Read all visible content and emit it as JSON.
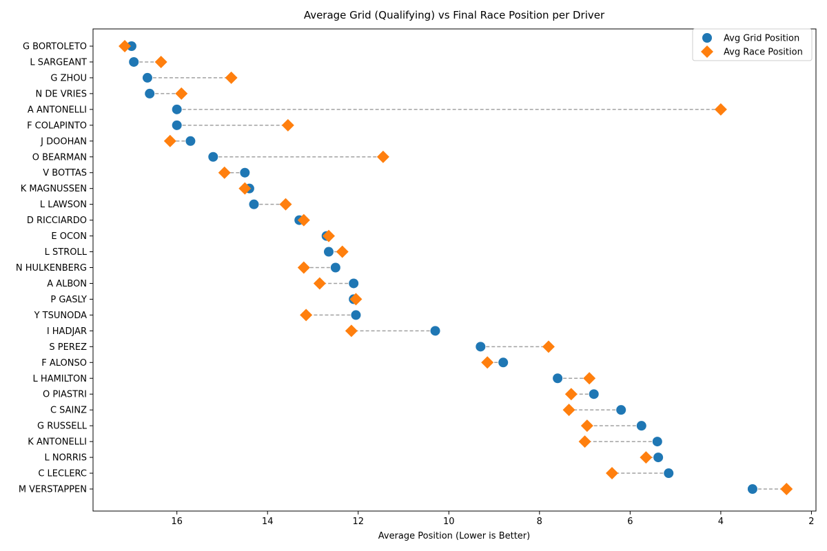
{
  "chart_data": {
    "type": "scatter",
    "title": "Average Grid (Qualifying) vs Final Race Position per Driver",
    "xlabel": "Average Position (Lower is Better)",
    "ylabel": "",
    "x_inverted": true,
    "xlim": [
      17.85,
      1.9
    ],
    "xticks": [
      16,
      14,
      12,
      10,
      8,
      6,
      4,
      2
    ],
    "grid": false,
    "legend_position": "top-right",
    "connector_style": "dashed-gray",
    "categories": [
      "G BORTOLETO",
      "L SARGEANT",
      "G ZHOU",
      "N DE VRIES",
      "A ANTONELLI",
      "F COLAPINTO",
      "J DOOHAN",
      "O BEARMAN",
      "V BOTTAS",
      "K MAGNUSSEN",
      "L LAWSON",
      "D RICCIARDO",
      "E OCON",
      "L STROLL",
      "N HULKENBERG",
      "A ALBON",
      "P GASLY",
      "Y TSUNODA",
      "I HADJAR",
      "S PEREZ",
      "F ALONSO",
      "L HAMILTON",
      "O PIASTRI",
      "C SAINZ",
      "G RUSSELL",
      "K ANTONELLI",
      "L NORRIS",
      "C LECLERC",
      "M VERSTAPPEN"
    ],
    "series": [
      {
        "name": "Avg Grid Position",
        "marker": "circle",
        "color": "#1f77b4",
        "values": [
          17.0,
          16.95,
          16.65,
          16.6,
          16.0,
          16.0,
          15.7,
          15.2,
          14.5,
          14.4,
          14.3,
          13.3,
          12.7,
          12.65,
          12.5,
          12.1,
          12.1,
          12.05,
          10.3,
          9.3,
          8.8,
          7.6,
          6.8,
          6.2,
          5.75,
          5.4,
          5.38,
          5.15,
          3.3
        ]
      },
      {
        "name": "Avg Race Position",
        "marker": "diamond",
        "color": "#ff7f0e",
        "values": [
          17.15,
          16.35,
          14.8,
          15.9,
          4.0,
          13.55,
          16.15,
          11.45,
          14.95,
          14.5,
          13.6,
          13.2,
          12.65,
          12.35,
          13.2,
          12.85,
          12.05,
          13.15,
          12.15,
          7.8,
          9.15,
          6.9,
          7.3,
          7.35,
          6.95,
          7.0,
          5.65,
          6.4,
          2.55
        ]
      }
    ]
  }
}
